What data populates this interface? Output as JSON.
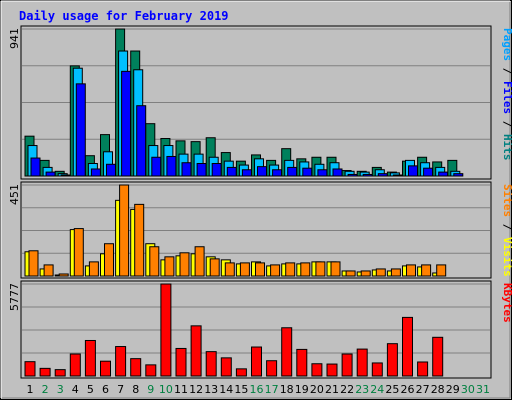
{
  "chart_data": {
    "type": "bar",
    "title": "Daily usage for February 2019",
    "x": [
      "1",
      "2",
      "3",
      "4",
      "5",
      "6",
      "7",
      "8",
      "9",
      "10",
      "11",
      "12",
      "13",
      "14",
      "15",
      "16",
      "17",
      "18",
      "19",
      "20",
      "21",
      "22",
      "23",
      "24",
      "25",
      "26",
      "27",
      "28",
      "29",
      "30",
      "31"
    ],
    "weekend_days": [
      2,
      3,
      9,
      10,
      16,
      17,
      23,
      24,
      30,
      31
    ],
    "panels": [
      {
        "name": "hits_files_pages",
        "max_label": "941",
        "ymax": 941,
        "side_label": [
          {
            "text": "Pages",
            "color": "#00a0ff"
          },
          {
            "text": " / ",
            "color": "#000000"
          },
          {
            "text": "Files",
            "color": "#0000ff"
          },
          {
            "text": " / ",
            "color": "#000000"
          },
          {
            "text": "Hits",
            "color": "#008080"
          }
        ],
        "series": [
          {
            "key": "hits",
            "color": "#00805c",
            "values": [
              255,
              100,
              30,
              705,
              130,
              265,
              941,
              800,
              335,
              240,
              225,
              220,
              245,
              150,
              95,
              135,
              100,
              175,
              110,
              120,
              120,
              35,
              30,
              55,
              25,
              95,
              120,
              90,
              100,
              0,
              0
            ]
          },
          {
            "key": "files",
            "color": "#00c0ff",
            "values": [
              195,
              55,
              15,
              690,
              80,
              155,
              800,
              680,
              195,
              195,
              140,
              140,
              120,
              95,
              70,
              110,
              70,
              100,
              90,
              75,
              85,
              30,
              25,
              40,
              20,
              100,
              85,
              55,
              30,
              0,
              0
            ]
          },
          {
            "key": "pages",
            "color": "#0000ff",
            "values": [
              115,
              25,
              5,
              590,
              45,
              75,
              670,
              450,
              120,
              125,
              85,
              80,
              80,
              55,
              40,
              60,
              40,
              55,
              50,
              40,
              45,
              10,
              10,
              15,
              5,
              65,
              50,
              25,
              15,
              0,
              0
            ]
          }
        ]
      },
      {
        "name": "visits_sites",
        "max_label": "451",
        "ymax": 451,
        "side_label": [
          {
            "text": "Sites",
            "color": "#ff8000"
          },
          {
            "text": " / ",
            "color": "#000000"
          },
          {
            "text": "Visits",
            "color": "#ffff00"
          }
        ],
        "series": [
          {
            "key": "visits",
            "color": "#ffff00",
            "values": [
              120,
              35,
              5,
              230,
              50,
              110,
              375,
              330,
              160,
              80,
              100,
              110,
              95,
              80,
              60,
              70,
              50,
              60,
              60,
              70,
              70,
              25,
              20,
              30,
              25,
              50,
              45,
              15,
              0,
              0,
              0
            ]
          },
          {
            "key": "sites",
            "color": "#ff8000",
            "values": [
              125,
              55,
              10,
              235,
              70,
              160,
              451,
              355,
              145,
              95,
              115,
              145,
              85,
              65,
              65,
              65,
              55,
              65,
              65,
              70,
              70,
              25,
              25,
              35,
              35,
              55,
              55,
              55,
              0,
              0,
              0
            ]
          }
        ]
      },
      {
        "name": "kbytes",
        "max_label": "5777",
        "ymax": 5777,
        "side_label": [
          {
            "text": "KBytes",
            "color": "#ff0000"
          }
        ],
        "series": [
          {
            "key": "kbytes",
            "color": "#ff0000",
            "values": [
              900,
              480,
              400,
              1380,
              2230,
              930,
              1850,
              1090,
              700,
              5777,
              1730,
              3150,
              1530,
              1140,
              450,
              1820,
              960,
              3030,
              1670,
              770,
              750,
              1380,
              1690,
              820,
              2030,
              3680,
              880,
              2430,
              0,
              0,
              0
            ]
          }
        ]
      }
    ]
  }
}
